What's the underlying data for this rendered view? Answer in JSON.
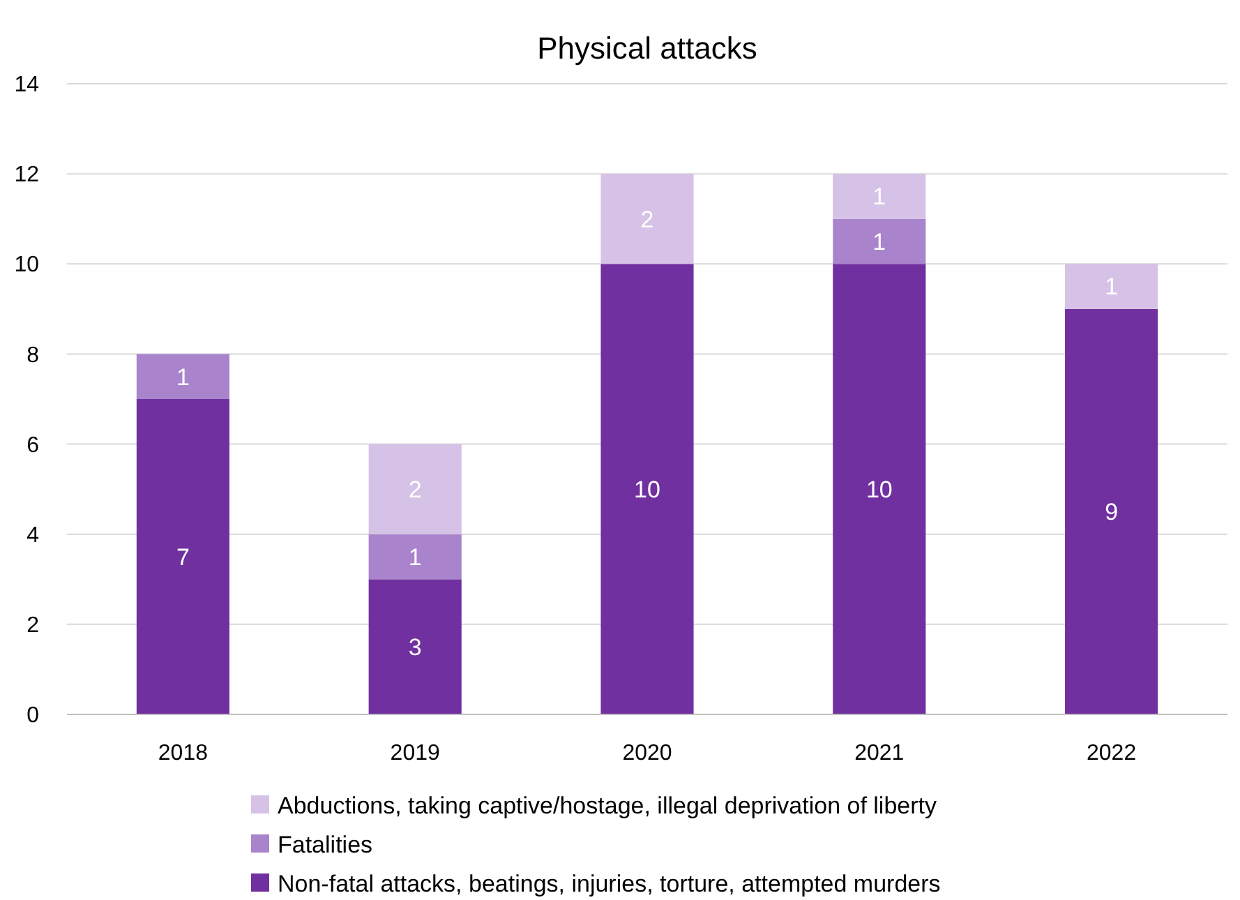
{
  "chart_data": {
    "type": "bar",
    "title": "Physical attacks",
    "categories": [
      "2018",
      "2019",
      "2020",
      "2021",
      "2022"
    ],
    "stacked": true,
    "data_labels": true,
    "grid": "y",
    "legend": "bottom",
    "ylim": [
      0,
      14
    ],
    "yticks": [
      0,
      2,
      4,
      6,
      8,
      10,
      12,
      14
    ],
    "series": [
      {
        "name": "Non-fatal attacks, beatings, injuries, torture, attempted murders",
        "color": "#7030a0",
        "values": [
          7,
          3,
          10,
          10,
          9
        ]
      },
      {
        "name": "Fatalities",
        "color": "#a983cc",
        "values": [
          1,
          1,
          null,
          1,
          null
        ]
      },
      {
        "name": "Abductions, taking captive/hostage, illegal deprivation of liberty",
        "color": "#d5c2e6",
        "values": [
          null,
          2,
          2,
          1,
          1
        ]
      }
    ]
  }
}
